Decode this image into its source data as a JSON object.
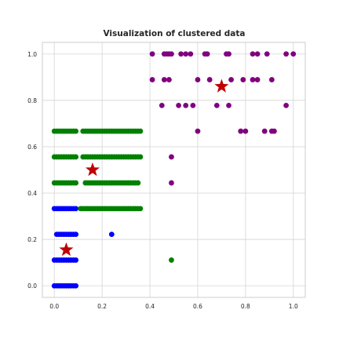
{
  "chart_data": {
    "type": "scatter",
    "title": "Visualization of clustered data",
    "xlabel": "",
    "ylabel": "",
    "xlim": [
      -0.05,
      1.05
    ],
    "ylim": [
      -0.05,
      1.05
    ],
    "x_ticks": [
      0.0,
      0.2,
      0.4,
      0.6,
      0.8,
      1.0
    ],
    "x_tick_labels": [
      "0.0",
      "0.2",
      "0.4",
      "0.6",
      "0.8",
      "1.0"
    ],
    "y_ticks": [
      0.0,
      0.2,
      0.4,
      0.6,
      0.8,
      1.0
    ],
    "y_tick_labels": [
      "0.0",
      "0.2",
      "0.4",
      "0.6",
      "0.8",
      "1.0"
    ],
    "grid": true,
    "style": "whitegrid",
    "series": [
      {
        "color": "#0000ff",
        "x": [
          0.0,
          0.01,
          0.02,
          0.03,
          0.04,
          0.05,
          0.06,
          0.07,
          0.08,
          0.09,
          0.0,
          0.01,
          0.02,
          0.03,
          0.04,
          0.05,
          0.06,
          0.07,
          0.08,
          0.09,
          0.01,
          0.02,
          0.03,
          0.04,
          0.05,
          0.06,
          0.07,
          0.08,
          0.09,
          0.24,
          0.0,
          0.01,
          0.02,
          0.03,
          0.04,
          0.05,
          0.06,
          0.07,
          0.08,
          0.09
        ],
        "y": [
          0.0,
          0.0,
          0.0,
          0.0,
          0.0,
          0.0,
          0.0,
          0.0,
          0.0,
          0.0,
          0.111,
          0.111,
          0.111,
          0.111,
          0.111,
          0.111,
          0.111,
          0.111,
          0.111,
          0.111,
          0.222,
          0.222,
          0.222,
          0.222,
          0.222,
          0.222,
          0.222,
          0.222,
          0.222,
          0.222,
          0.333,
          0.333,
          0.333,
          0.333,
          0.333,
          0.333,
          0.333,
          0.333,
          0.333,
          0.333
        ]
      },
      {
        "color": "#008000",
        "x": [
          0.11,
          0.12,
          0.13,
          0.14,
          0.15,
          0.16,
          0.17,
          0.18,
          0.19,
          0.2,
          0.21,
          0.22,
          0.23,
          0.24,
          0.25,
          0.26,
          0.27,
          0.28,
          0.29,
          0.3,
          0.31,
          0.32,
          0.33,
          0.34,
          0.35,
          0.36,
          0.0,
          0.01,
          0.02,
          0.03,
          0.04,
          0.05,
          0.06,
          0.07,
          0.08,
          0.09,
          0.13,
          0.14,
          0.15,
          0.16,
          0.17,
          0.18,
          0.19,
          0.2,
          0.21,
          0.22,
          0.23,
          0.24,
          0.25,
          0.26,
          0.27,
          0.28,
          0.29,
          0.3,
          0.31,
          0.32,
          0.33,
          0.34,
          0.35,
          0.0,
          0.01,
          0.02,
          0.03,
          0.04,
          0.05,
          0.06,
          0.07,
          0.08,
          0.09,
          0.12,
          0.13,
          0.14,
          0.15,
          0.16,
          0.17,
          0.18,
          0.19,
          0.2,
          0.21,
          0.22,
          0.23,
          0.24,
          0.25,
          0.26,
          0.27,
          0.28,
          0.29,
          0.3,
          0.31,
          0.32,
          0.33,
          0.34,
          0.35,
          0.36,
          0.0,
          0.01,
          0.02,
          0.03,
          0.04,
          0.05,
          0.06,
          0.07,
          0.08,
          0.09,
          0.12,
          0.13,
          0.14,
          0.15,
          0.16,
          0.17,
          0.18,
          0.19,
          0.2,
          0.21,
          0.22,
          0.23,
          0.24,
          0.25,
          0.26,
          0.27,
          0.28,
          0.29,
          0.3,
          0.31,
          0.32,
          0.33,
          0.34,
          0.35,
          0.36,
          0.49
        ],
        "y": [
          0.333,
          0.333,
          0.333,
          0.333,
          0.333,
          0.333,
          0.333,
          0.333,
          0.333,
          0.333,
          0.333,
          0.333,
          0.333,
          0.333,
          0.333,
          0.333,
          0.333,
          0.333,
          0.333,
          0.333,
          0.333,
          0.333,
          0.333,
          0.333,
          0.333,
          0.333,
          0.444,
          0.444,
          0.444,
          0.444,
          0.444,
          0.444,
          0.444,
          0.444,
          0.444,
          0.444,
          0.444,
          0.444,
          0.444,
          0.444,
          0.444,
          0.444,
          0.444,
          0.444,
          0.444,
          0.444,
          0.444,
          0.444,
          0.444,
          0.444,
          0.444,
          0.444,
          0.444,
          0.444,
          0.444,
          0.444,
          0.444,
          0.444,
          0.444,
          0.556,
          0.556,
          0.556,
          0.556,
          0.556,
          0.556,
          0.556,
          0.556,
          0.556,
          0.556,
          0.556,
          0.556,
          0.556,
          0.556,
          0.556,
          0.556,
          0.556,
          0.556,
          0.556,
          0.556,
          0.556,
          0.556,
          0.556,
          0.556,
          0.556,
          0.556,
          0.556,
          0.556,
          0.556,
          0.556,
          0.556,
          0.556,
          0.556,
          0.556,
          0.556,
          0.667,
          0.667,
          0.667,
          0.667,
          0.667,
          0.667,
          0.667,
          0.667,
          0.667,
          0.667,
          0.667,
          0.667,
          0.667,
          0.667,
          0.667,
          0.667,
          0.667,
          0.667,
          0.667,
          0.667,
          0.667,
          0.667,
          0.667,
          0.667,
          0.667,
          0.667,
          0.667,
          0.667,
          0.667,
          0.667,
          0.667,
          0.667,
          0.667,
          0.667,
          0.667,
          0.111
        ]
      },
      {
        "color": "#800080",
        "x": [
          0.49,
          0.49,
          0.6,
          0.78,
          0.8,
          0.88,
          0.91,
          0.92,
          0.45,
          0.52,
          0.55,
          0.58,
          0.68,
          0.73,
          0.97,
          0.41,
          0.46,
          0.48,
          0.6,
          0.65,
          0.74,
          0.79,
          0.83,
          0.85,
          0.91,
          0.41,
          0.46,
          0.47,
          0.48,
          0.49,
          0.53,
          0.55,
          0.57,
          0.63,
          0.64,
          0.72,
          0.73,
          0.83,
          0.85,
          0.89,
          0.97,
          1.0
        ],
        "y": [
          0.444,
          0.556,
          0.667,
          0.667,
          0.667,
          0.667,
          0.667,
          0.667,
          0.778,
          0.778,
          0.778,
          0.778,
          0.778,
          0.778,
          0.778,
          0.889,
          0.889,
          0.889,
          0.889,
          0.889,
          0.889,
          0.889,
          0.889,
          0.889,
          0.889,
          1.0,
          1.0,
          1.0,
          1.0,
          1.0,
          1.0,
          1.0,
          1.0,
          1.0,
          1.0,
          1.0,
          1.0,
          1.0,
          1.0,
          1.0,
          1.0,
          1.0
        ]
      }
    ],
    "centroids": {
      "marker": "star",
      "color": "#c00000",
      "x": [
        0.05,
        0.16,
        0.7
      ],
      "y": [
        0.155,
        0.5,
        0.86
      ]
    }
  }
}
